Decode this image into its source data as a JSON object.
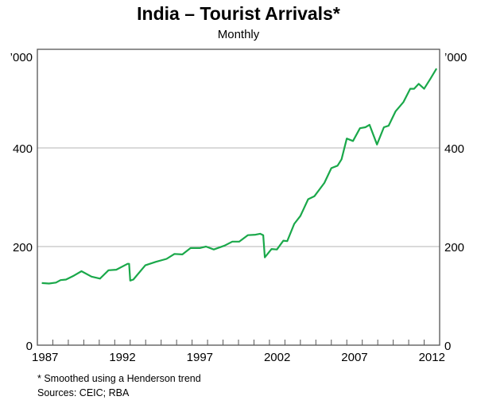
{
  "chart_data": {
    "type": "line",
    "title": "India – Tourist Arrivals*",
    "subtitle": "Monthly",
    "ylabel_left": "’000",
    "ylabel_right": "’000",
    "xlim": [
      1987,
      2013
    ],
    "ylim": [
      0,
      600
    ],
    "yticks": [
      0,
      200,
      400
    ],
    "xtick_labels": [
      "1987",
      "1992",
      "1997",
      "2002",
      "2007",
      "2012"
    ],
    "grid": "horizontal",
    "line_color": "#1aa84a",
    "series": [
      {
        "x": [
          1987.29,
          1987.75,
          1988.2,
          1988.5,
          1988.85,
          1989.36,
          1989.85,
          1990.5,
          1991.05,
          1991.6,
          1992.1,
          1992.83,
          1992.93,
          1993.0,
          1993.2,
          1993.98,
          1994.66,
          1995.35,
          1995.86,
          1996.37,
          1996.9,
          1997.5,
          1997.9,
          1998.4,
          1999.1,
          1999.6,
          2000.05,
          2000.6,
          2001.1,
          2001.4,
          2001.6,
          2001.7,
          2002.14,
          2002.48,
          2002.9,
          2003.15,
          2003.6,
          2004.0,
          2004.5,
          2004.9,
          2005.55,
          2006.0,
          2006.4,
          2006.66,
          2007.0,
          2007.4,
          2007.85,
          2008.2,
          2008.47,
          2008.95,
          2009.4,
          2009.7,
          2010.15,
          2010.66,
          2011.1,
          2011.35,
          2011.65,
          2012.0,
          2012.4,
          2012.8
        ],
        "y": [
          126,
          125,
          127,
          132,
          133,
          141,
          150,
          139,
          135,
          152,
          153,
          165,
          165,
          131,
          133,
          162,
          169,
          175,
          185,
          184,
          197,
          197,
          200,
          194,
          202,
          210,
          210,
          223,
          224,
          226,
          223,
          178,
          195,
          194,
          212,
          211,
          246,
          262,
          296,
          302,
          329,
          359,
          364,
          377,
          419,
          414,
          440,
          442,
          447,
          407,
          442,
          445,
          474,
          493,
          520,
          520,
          530,
          520,
          540,
          561
        ]
      }
    ]
  },
  "footnotes": {
    "note": "*     Smoothed using a Henderson trend",
    "sources": "Sources: CEIC; RBA"
  }
}
